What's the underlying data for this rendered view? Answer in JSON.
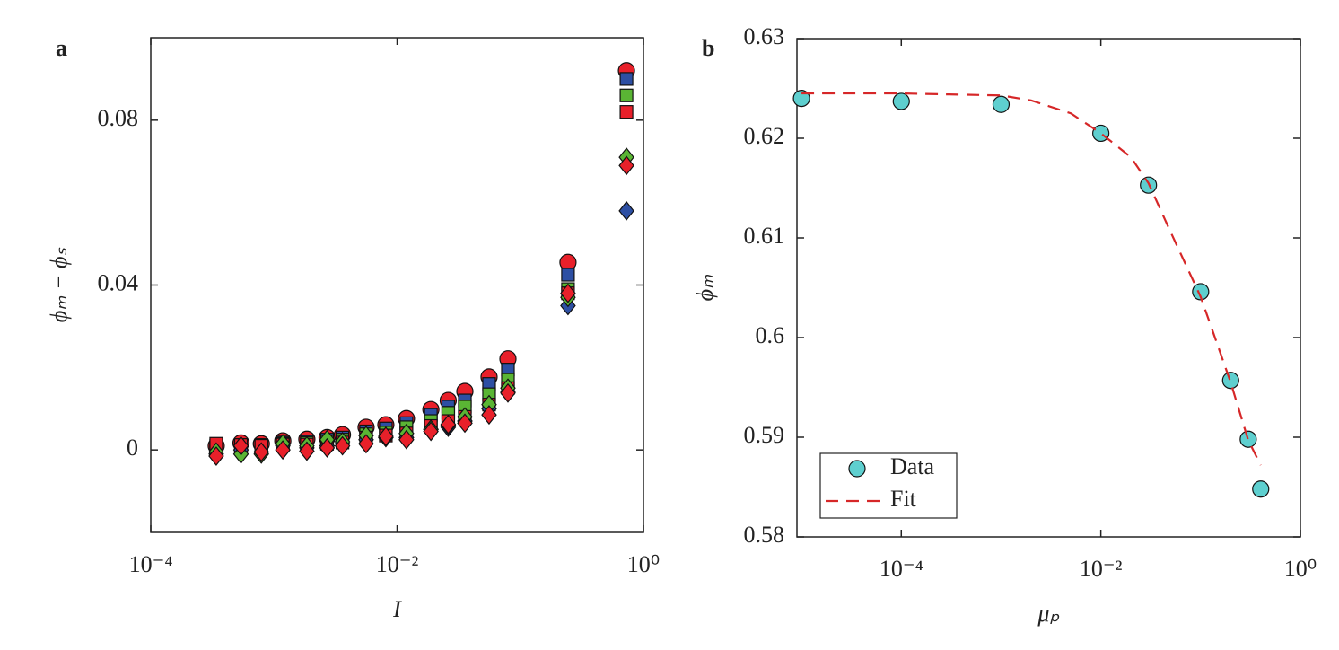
{
  "chart_data": [
    {
      "type": "scatter",
      "panel_label": "a",
      "xlabel": "I",
      "ylabel": "ϕₘ − ϕₛ",
      "xscale": "log",
      "xlim": [
        0.0001,
        1
      ],
      "ylim": [
        -0.02,
        0.1
      ],
      "xticks": [
        {
          "value": 0.0001,
          "label": "10⁻⁴"
        },
        {
          "value": 0.01,
          "label": "10⁻²"
        },
        {
          "value": 1,
          "label": "10⁰"
        }
      ],
      "yticks": [
        0,
        0.04,
        0.08
      ],
      "x": [
        0.00034,
        0.00054,
        0.00079,
        0.00118,
        0.00185,
        0.0027,
        0.0036,
        0.0056,
        0.0081,
        0.0119,
        0.0188,
        0.026,
        0.0355,
        0.0558,
        0.0794,
        0.244,
        0.728
      ],
      "series": [
        {
          "color": "#e8202a",
          "marker": "circle",
          "values": [
            0.001,
            0.0017,
            0.0015,
            0.0022,
            0.0026,
            0.003,
            0.0037,
            0.0055,
            0.0061,
            0.0076,
            0.0098,
            0.012,
            0.0142,
            0.0177,
            0.0221,
            0.0455,
            0.092
          ]
        },
        {
          "color": "#2d4fa3",
          "marker": "square",
          "values": [
            0.001,
            0.0012,
            0.0012,
            0.0018,
            0.002,
            0.0025,
            0.003,
            0.0045,
            0.0052,
            0.0065,
            0.0085,
            0.0105,
            0.012,
            0.016,
            0.0195,
            0.0425,
            0.09
          ]
        },
        {
          "color": "#5ab534",
          "marker": "square",
          "values": [
            0.0005,
            0.0008,
            0.0008,
            0.0015,
            0.0017,
            0.002,
            0.0025,
            0.0038,
            0.0042,
            0.0055,
            0.007,
            0.009,
            0.0105,
            0.0135,
            0.017,
            0.039,
            0.086
          ]
        },
        {
          "color": "#e8202a",
          "marker": "square",
          "values": [
            0.0015,
            0.0012,
            0.001,
            0.0013,
            0.0013,
            0.0015,
            0.0018,
            0.003,
            0.0035,
            0.004,
            0.0058,
            0.007,
            0.008,
            0.011,
            0.015,
            0.038,
            0.082
          ]
        },
        {
          "color": "#2d4fa3",
          "marker": "diamond",
          "values": [
            -0.001,
            0,
            -0.0005,
            0.001,
            0.0005,
            0.001,
            0.0015,
            0.0025,
            0.003,
            0.003,
            0.005,
            0.0055,
            0.007,
            0.01,
            0.014,
            0.035,
            0.058
          ]
        },
        {
          "color": "#5ab534",
          "marker": "diamond",
          "values": [
            -0.0005,
            -0.001,
            -0.001,
            0.0015,
            0.001,
            0.0025,
            0.002,
            0.0035,
            0.003,
            0.004,
            0.005,
            0.006,
            0.008,
            0.011,
            0.015,
            0.037,
            0.071
          ]
        },
        {
          "color": "#e8202a",
          "marker": "diamond",
          "values": [
            -0.0015,
            0.001,
            -0.0005,
            0,
            -0.0003,
            0.0005,
            0.001,
            0.0015,
            0.0033,
            0.0025,
            0.0045,
            0.0062,
            0.0065,
            0.0085,
            0.0138,
            0.038,
            0.069
          ]
        }
      ]
    },
    {
      "type": "scatter",
      "panel_label": "b",
      "xlabel": "μₚ",
      "ylabel": "ϕₘ",
      "xscale": "log",
      "xlim": [
        9e-06,
        1
      ],
      "ylim": [
        0.58,
        0.63
      ],
      "xticks": [
        {
          "value": 0.0001,
          "label": "10⁻⁴"
        },
        {
          "value": 0.01,
          "label": "10⁻²"
        },
        {
          "value": 1,
          "label": "10⁰"
        }
      ],
      "yticks": [
        0.58,
        0.59,
        0.6,
        0.61,
        0.62,
        0.63
      ],
      "legend": "lower left",
      "series": [
        {
          "name": "Data",
          "color": "#5ecfcf",
          "marker": "circle",
          "x": [
            1e-05,
            0.0001,
            0.001,
            0.01,
            0.03,
            0.1,
            0.2,
            0.3,
            0.4
          ],
          "values": [
            0.624,
            0.6237,
            0.6234,
            0.6205,
            0.6153,
            0.6046,
            0.5957,
            0.5898,
            0.5848
          ]
        },
        {
          "name": "Fit",
          "color": "#d62728",
          "line_style": "dashed",
          "x": [
            1e-05,
            0.0001,
            0.0003,
            0.001,
            0.002,
            0.005,
            0.01,
            0.02,
            0.03,
            0.05,
            0.1,
            0.2,
            0.3,
            0.4
          ],
          "values": [
            0.6245,
            0.6245,
            0.6244,
            0.6243,
            0.6238,
            0.6225,
            0.6205,
            0.6181,
            0.6155,
            0.6106,
            0.6041,
            0.5955,
            0.5897,
            0.5872
          ]
        }
      ]
    }
  ]
}
